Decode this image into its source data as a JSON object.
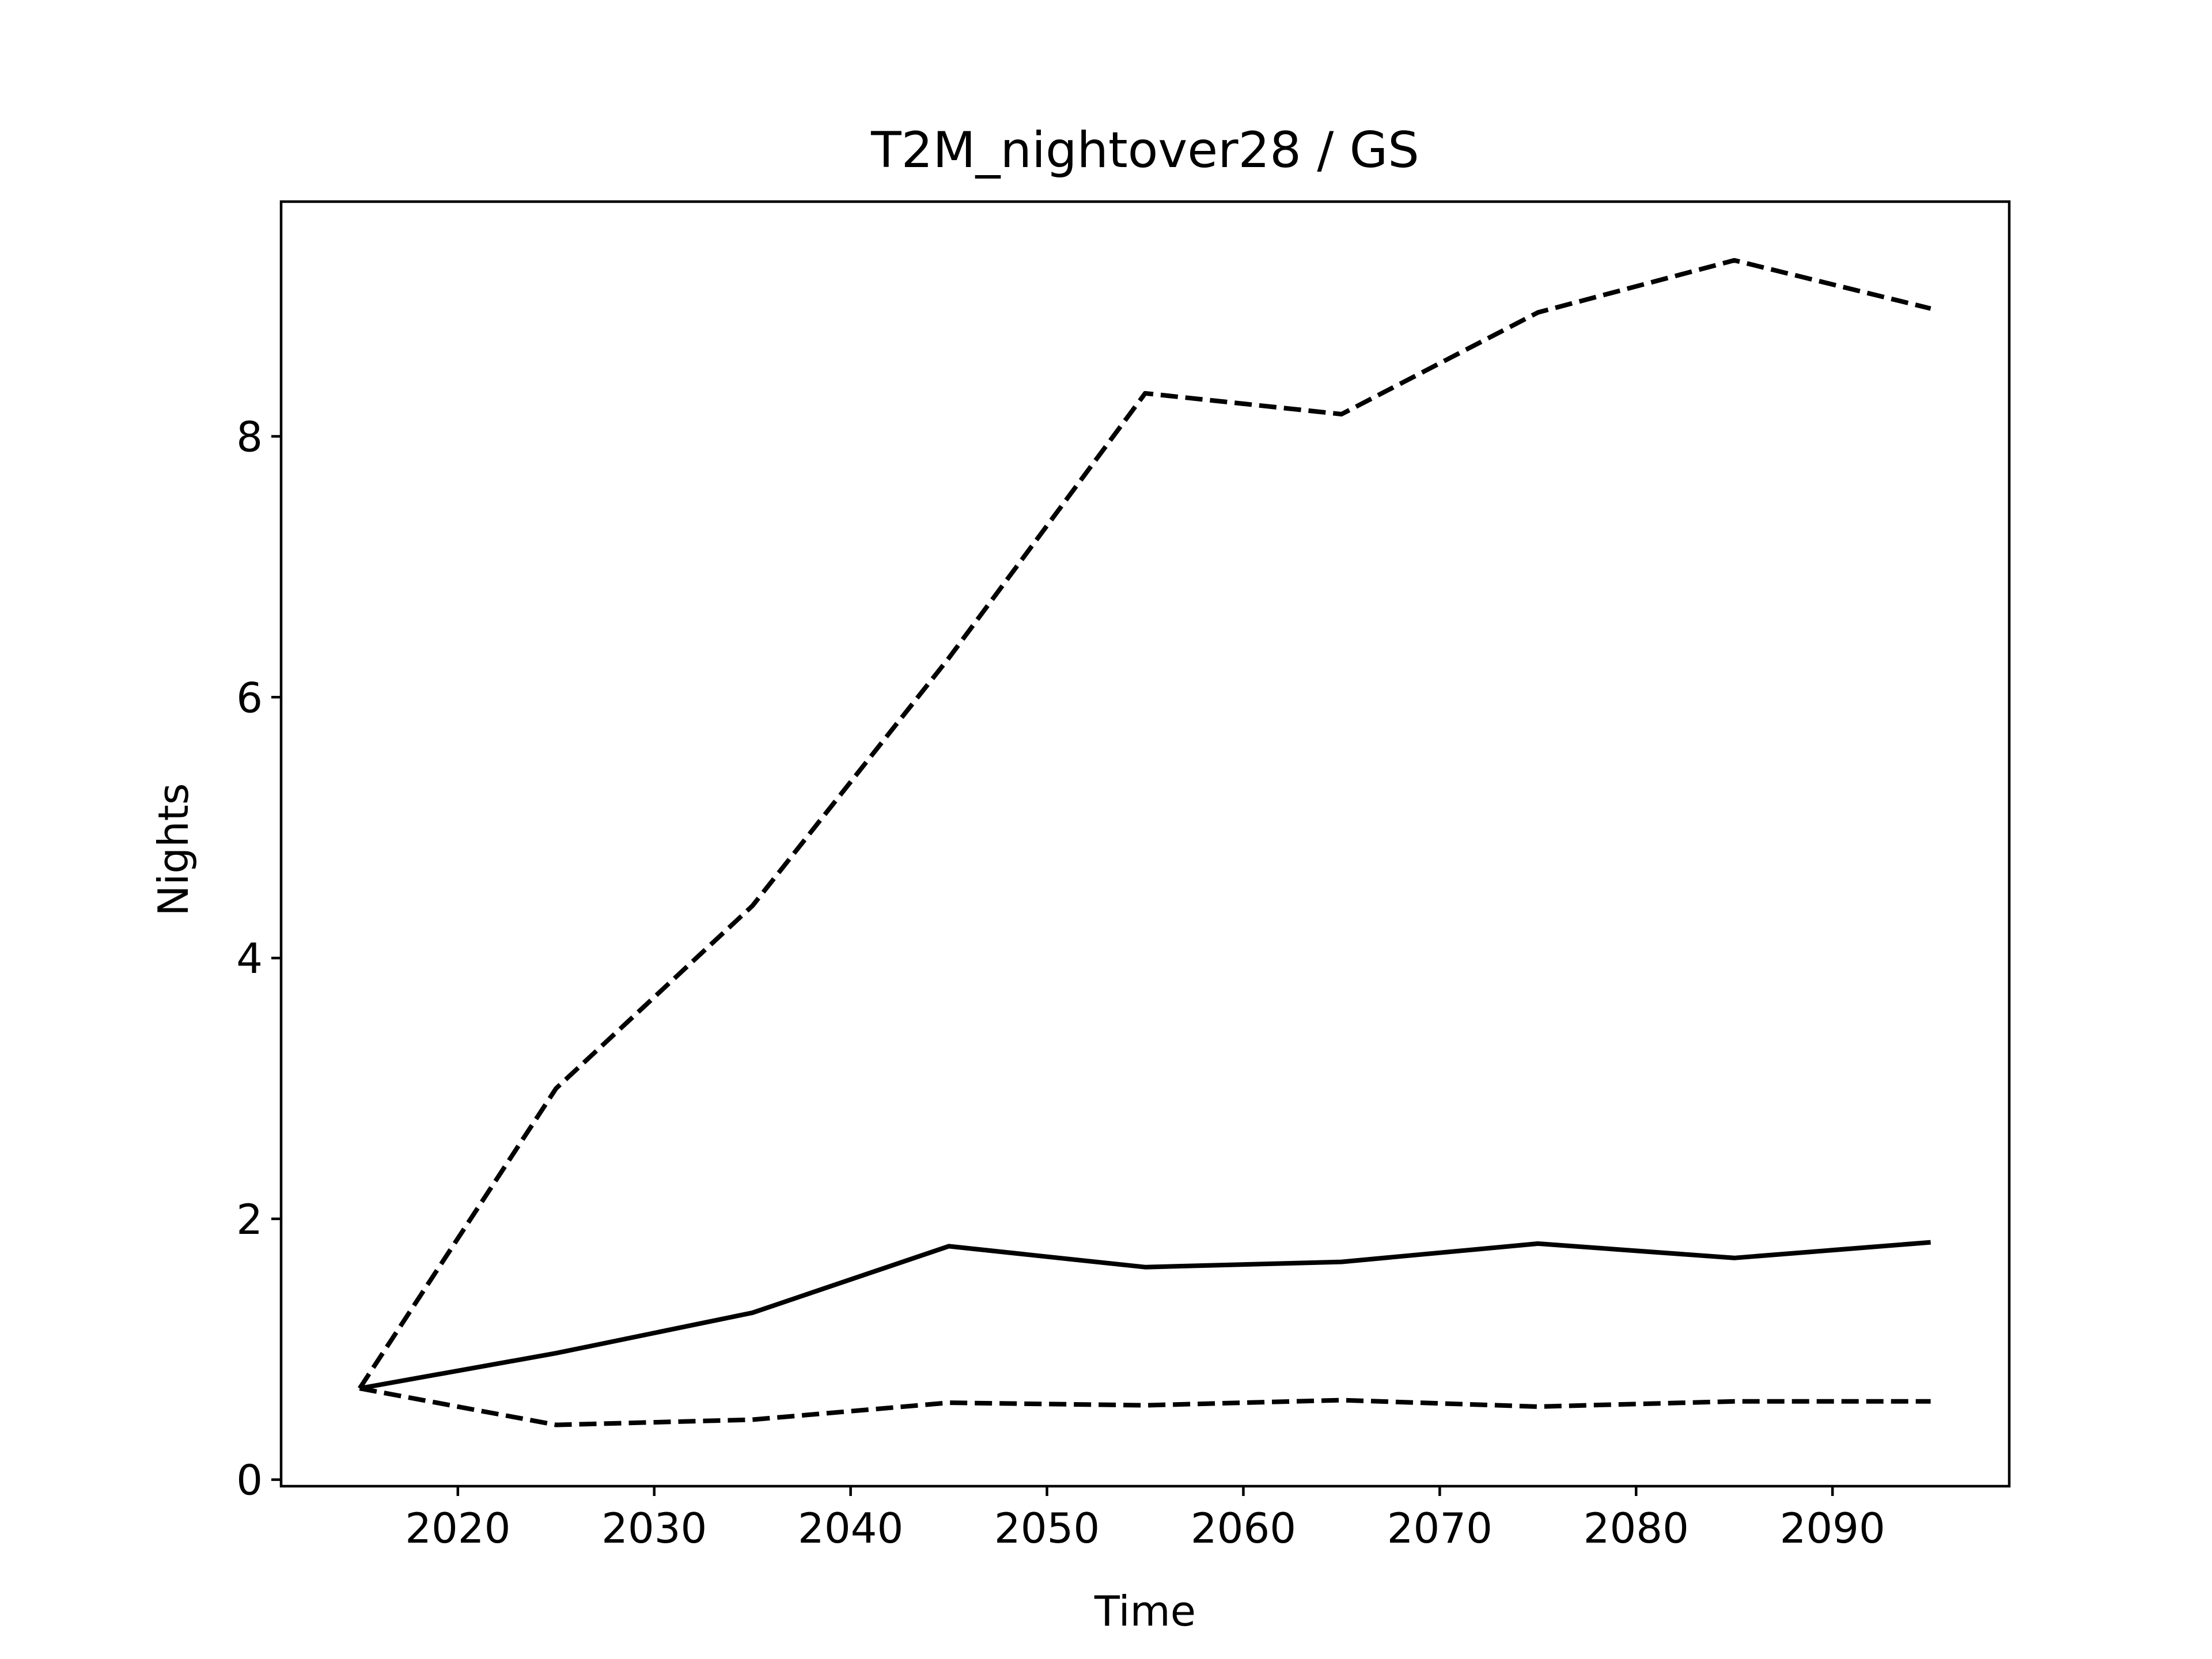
{
  "chart_data": {
    "type": "line",
    "title": "T2M_nightover28 / GS",
    "xlabel": "Time",
    "ylabel": "Nights",
    "xlim": [
      2011,
      2099
    ],
    "ylim": [
      -0.05,
      9.8
    ],
    "xticks": [
      2020,
      2030,
      2040,
      2050,
      2060,
      2070,
      2080,
      2090
    ],
    "yticks": [
      0,
      2,
      4,
      6,
      8
    ],
    "grid": false,
    "legend": "none",
    "line_color": "#000000",
    "x": [
      2015,
      2025,
      2035,
      2045,
      2055,
      2065,
      2075,
      2085,
      2095
    ],
    "series": [
      {
        "style": "dashed",
        "values": [
          0.7,
          3.0,
          4.4,
          6.3,
          8.33,
          8.17,
          8.95,
          9.35,
          8.98
        ]
      },
      {
        "style": "solid",
        "values": [
          0.7,
          0.97,
          1.28,
          1.79,
          1.63,
          1.67,
          1.81,
          1.7,
          1.82
        ]
      },
      {
        "style": "dashed",
        "values": [
          0.7,
          0.42,
          0.46,
          0.59,
          0.57,
          0.61,
          0.56,
          0.6,
          0.6
        ]
      }
    ]
  }
}
